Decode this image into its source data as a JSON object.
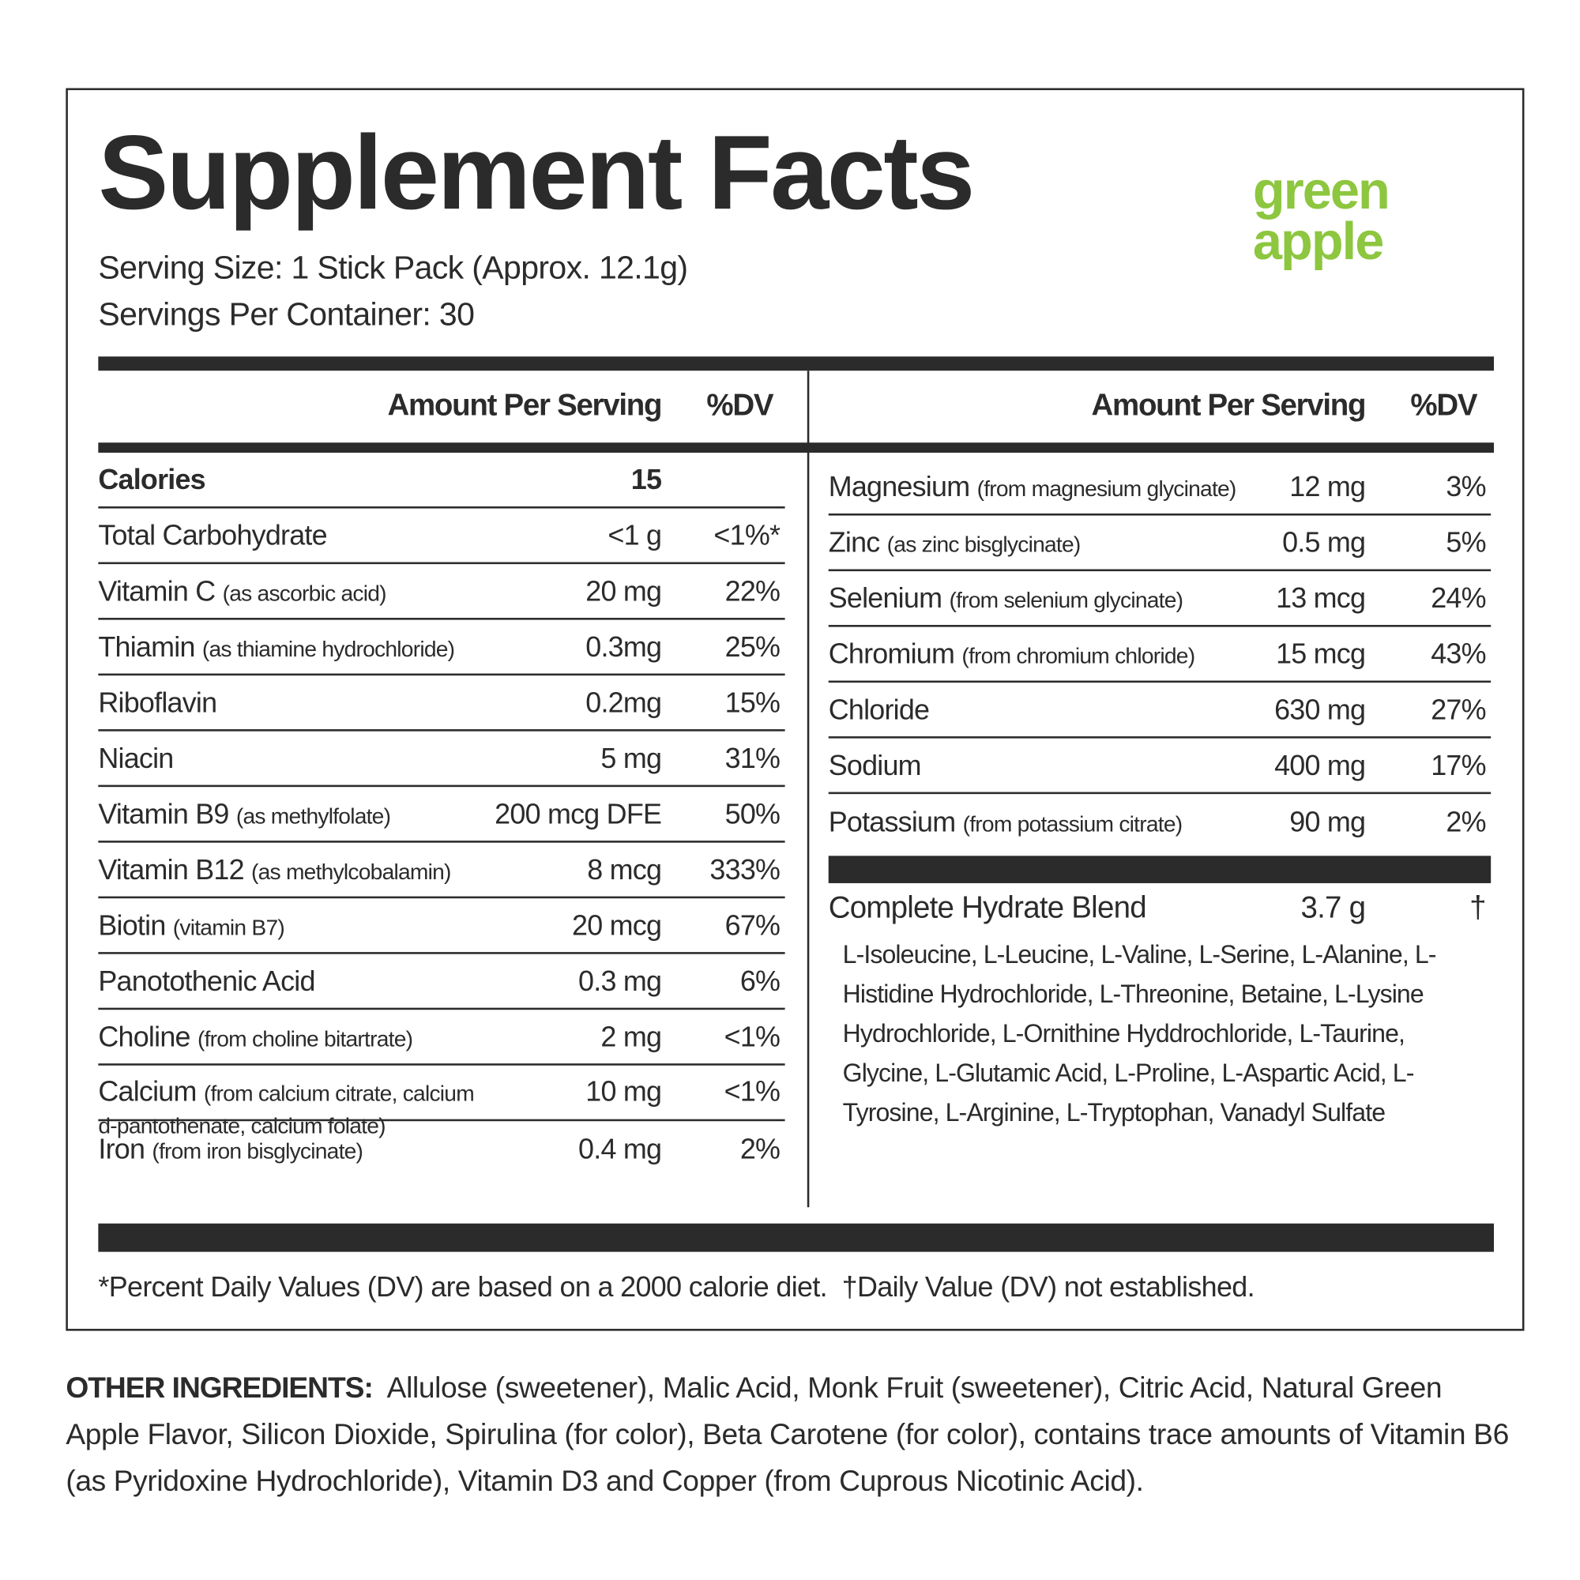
{
  "header": {
    "title": "Supplement Facts",
    "flavor": "green apple",
    "serving_size": "Serving Size: 1 Stick Pack (Approx. 12.1g)",
    "servings_per_container": "Servings Per Container: 30"
  },
  "columns": {
    "amount": "Amount Per Serving",
    "dv": "%DV"
  },
  "left_rows": [
    {
      "name": "Calories",
      "amount": "15"
    },
    {
      "name": "Total Carbohydrate",
      "amount": "<1 g",
      "dv": "<1%*"
    },
    {
      "name": "Vitamin C",
      "note": "(as ascorbic acid)",
      "amount": "20 mg",
      "dv": "22%"
    },
    {
      "name": "Thiamin",
      "note": "(as thiamine hydrochloride)",
      "amount": "0.3mg",
      "dv": "25%"
    },
    {
      "name": "Riboflavin",
      "amount": "0.2mg",
      "dv": "15%"
    },
    {
      "name": "Niacin",
      "amount": "5 mg",
      "dv": "31%"
    },
    {
      "name": "Vitamin B9",
      "note": "(as methylfolate)",
      "amount": "200 mcg DFE",
      "dv": "50%"
    },
    {
      "name": "Vitamin B12",
      "note": "(as methylcobalamin)",
      "amount": "8 mcg",
      "dv": "333%"
    },
    {
      "name": "Biotin",
      "note": "(vitamin B7)",
      "amount": "20 mcg",
      "dv": "67%"
    },
    {
      "name": "Panotothenic Acid",
      "amount": "0.3 mg",
      "dv": "6%"
    },
    {
      "name": "Choline",
      "note": "(from choline bitartrate)",
      "amount": "2 mg",
      "dv": "<1%"
    },
    {
      "name": "Calcium",
      "note": "(from calcium citrate, calcium d-pantothenate, calcium folate)",
      "amount": "10 mg",
      "dv": "<1%"
    },
    {
      "name": "Iron",
      "note": "(from iron bisglycinate)",
      "amount": "0.4 mg",
      "dv": "2%"
    }
  ],
  "right_rows": [
    {
      "name": "Magnesium",
      "note": "(from magnesium glycinate)",
      "amount": "12 mg",
      "dv": "3%"
    },
    {
      "name": "Zinc",
      "note": "(as zinc bisglycinate)",
      "amount": "0.5 mg",
      "dv": "5%"
    },
    {
      "name": "Selenium",
      "note": "(from selenium glycinate)",
      "amount": "13 mcg",
      "dv": "24%"
    },
    {
      "name": "Chromium",
      "note": "(from chromium chloride)",
      "amount": "15 mcg",
      "dv": "43%"
    },
    {
      "name": "Chloride",
      "amount": "630 mg",
      "dv": "27%"
    },
    {
      "name": "Sodium",
      "amount": "400 mg",
      "dv": "17%"
    },
    {
      "name": "Potassium",
      "note": "(from potassium citrate)",
      "amount": "90 mg",
      "dv": "2%"
    }
  ],
  "blend": {
    "name": "Complete Hydrate Blend",
    "amount": "3.7 g",
    "dv": "†",
    "ingredients": "L-Isoleucine, L-Leucine, L-Valine, L-Serine, L-Alanine, L-Histidine Hydrochloride, L-Threonine, Betaine, L-Lysine Hydrochloride, L-Ornithine Hyddrochloride, L-Taurine, Glycine, L-Glutamic Acid, L-Proline, L-Aspartic Acid, L-Tyrosine, L-Arginine, L-Tryptophan, Vanadyl Sulfate"
  },
  "footnote": "*Percent Daily Values (DV) are based on a 2000 calorie diet.  †Daily Value (DV) not established.",
  "other_ingredients": {
    "label": "OTHER INGREDIENTS:",
    "text": "Allulose (sweetener), Malic Acid, Monk Fruit (sweetener), Citric Acid, Natural Green Apple Flavor, Silicon Dioxide, Spirulina (for color), Beta Carotene (for color), contains trace amounts of Vitamin B6 (as Pyridoxine Hydrochloride), Vitamin D3 and Copper (from Cuprous Nicotinic Acid)."
  }
}
